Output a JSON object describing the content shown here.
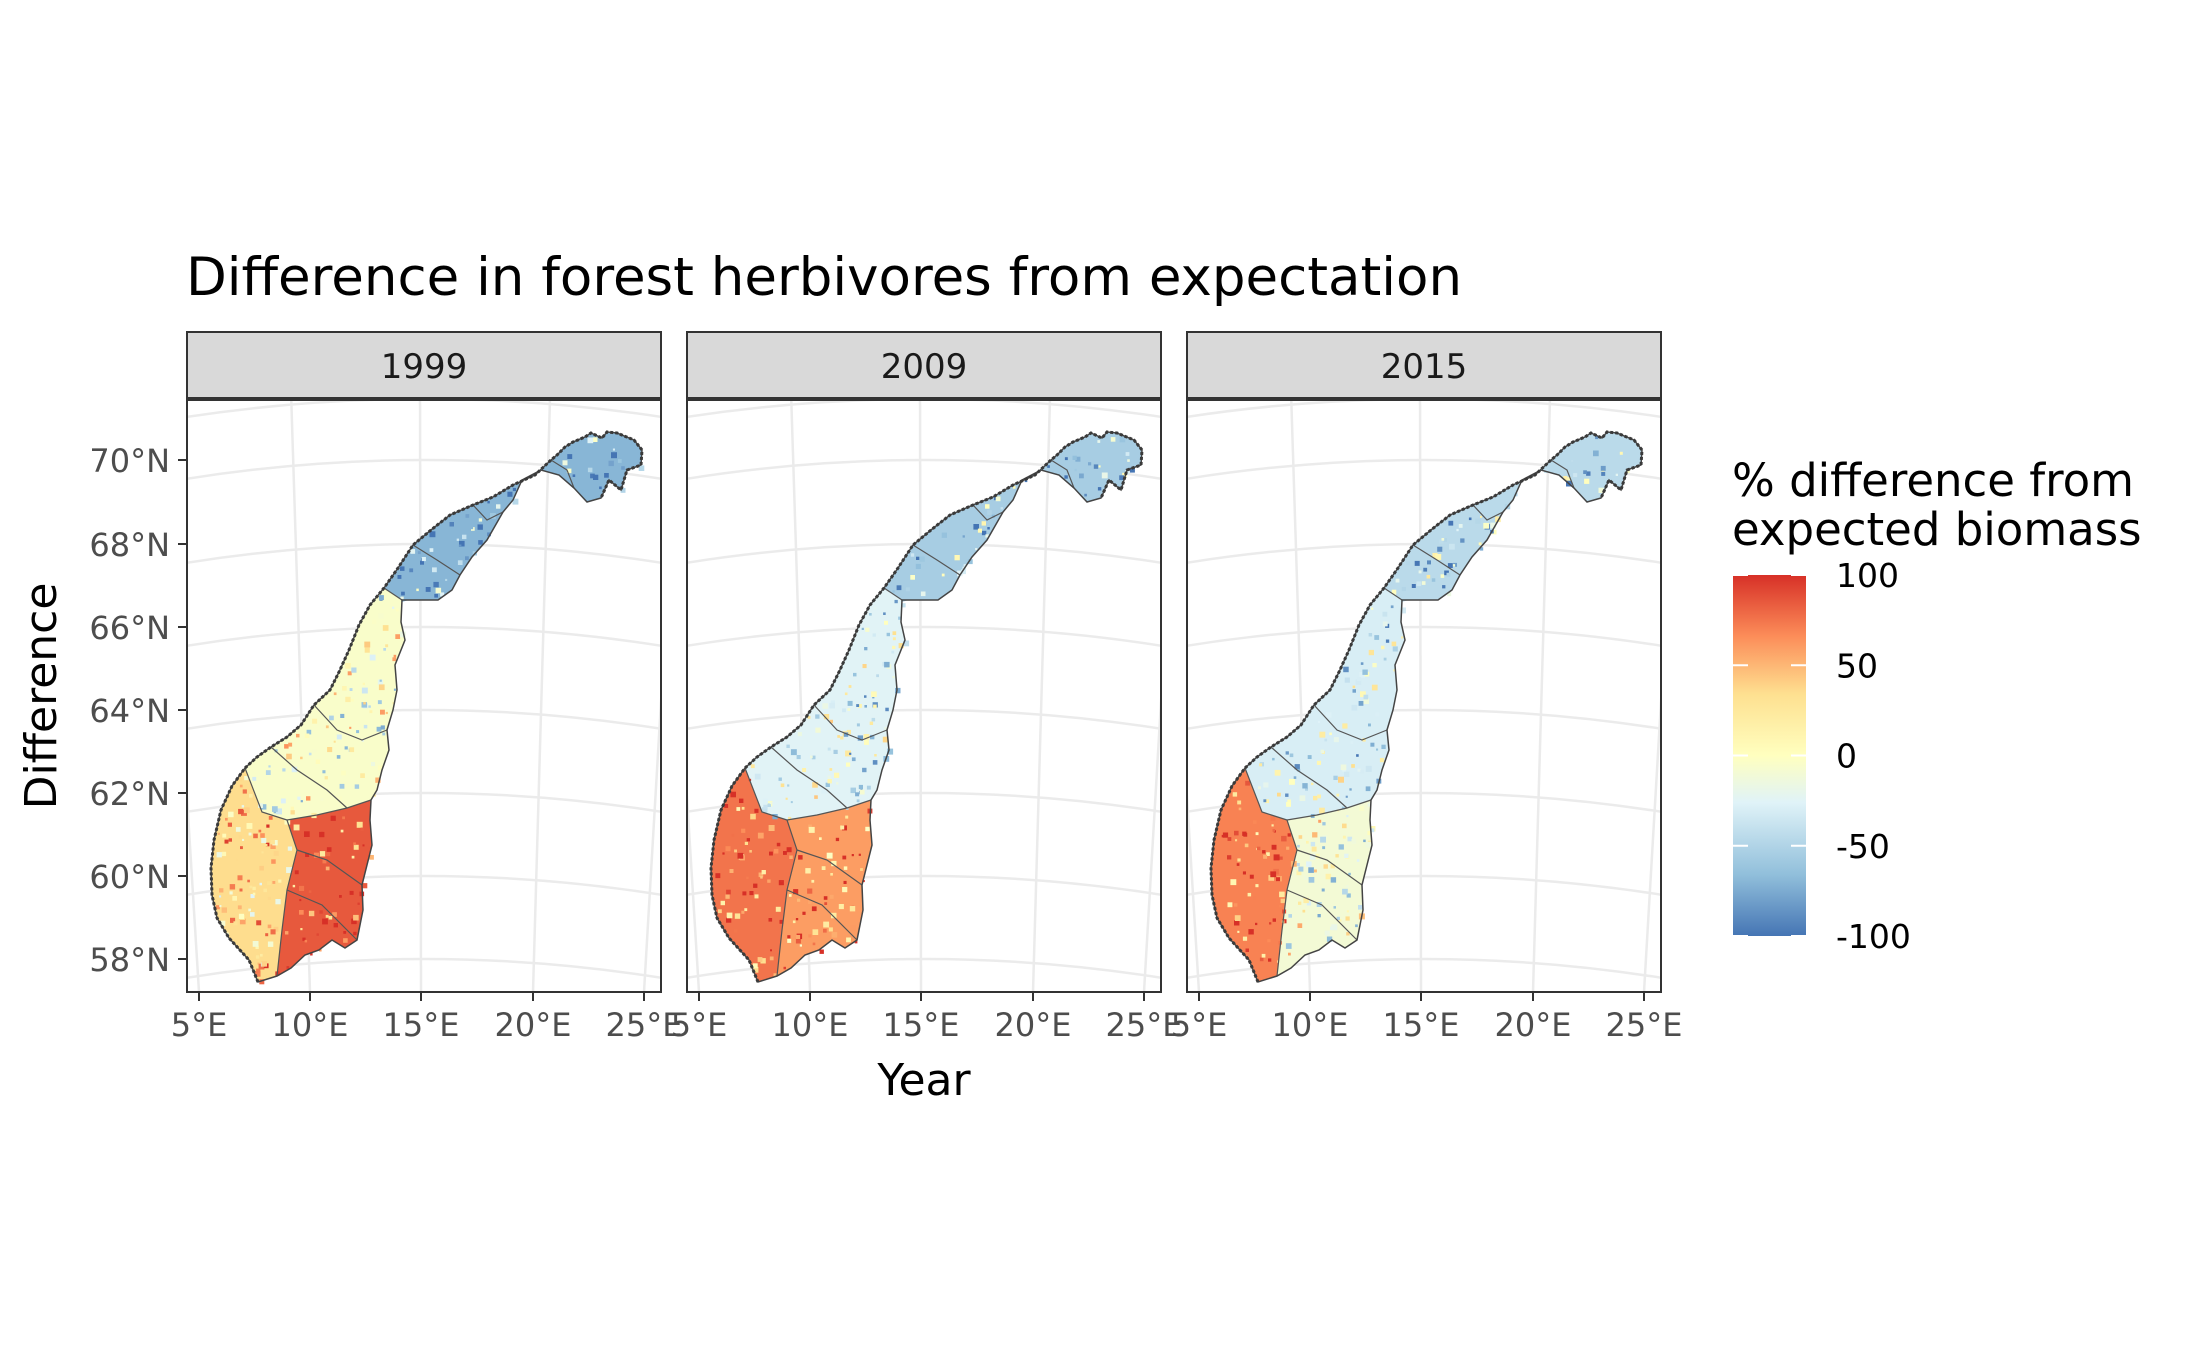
{
  "chart_data": {
    "type": "map",
    "title": "Difference in forest herbivores from expectation",
    "xlabel": "Year",
    "ylabel": "Difference",
    "panels": [
      {
        "label": "1999",
        "south_east": 85,
        "west_coast": 35,
        "central": -5,
        "north": -70
      },
      {
        "label": "2009",
        "south_east": 60,
        "west_coast": 75,
        "central": -25,
        "north": -55
      },
      {
        "label": "2015",
        "south_east": -10,
        "west_coast": 70,
        "central": -30,
        "north": -45
      }
    ],
    "x_ticks": [
      "5°E",
      "10°E",
      "15°E",
      "20°E",
      "25°E"
    ],
    "y_ticks": [
      "70°N",
      "68°N",
      "66°N",
      "64°N",
      "62°N",
      "60°N",
      "58°N"
    ],
    "legend": {
      "title_line1": "% difference from",
      "title_line2": "expected biomass",
      "min": -100,
      "max": 100,
      "breaks": [
        "100",
        "50",
        "0",
        "-50",
        "-100"
      ],
      "colors": [
        "#4575b4",
        "#91bfdb",
        "#e0f3f8",
        "#ffffbf",
        "#fee090",
        "#fc8d59",
        "#d73027"
      ]
    }
  }
}
